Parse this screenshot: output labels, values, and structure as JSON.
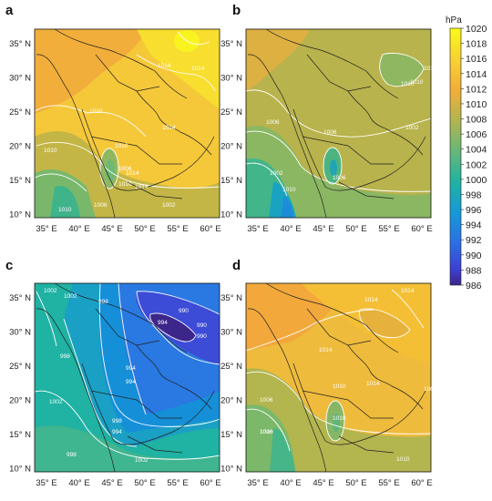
{
  "figure": {
    "panels": [
      {
        "letter": "a",
        "contour_labels": [
          "1014",
          "1014",
          "1010",
          "1014",
          "1010",
          "1010",
          "1006",
          "1014",
          "1010",
          "1014",
          "1002",
          "1006",
          "1010"
        ]
      },
      {
        "letter": "b",
        "contour_labels": [
          "1010",
          "1010",
          "1006",
          "1010",
          "1006",
          "1002",
          "1002",
          "1006",
          "1010"
        ]
      },
      {
        "letter": "c",
        "contour_labels": [
          "1002",
          "1002",
          "998",
          "994",
          "990",
          "990",
          "990",
          "994",
          "994",
          "998",
          "1002",
          "998",
          "994",
          "998",
          "1002"
        ]
      },
      {
        "letter": "d",
        "contour_labels": [
          "1014",
          "1014",
          "1014",
          "1010",
          "1014",
          "1010",
          "1006",
          "1006",
          "1010",
          "1010",
          "1006"
        ]
      }
    ],
    "x_ticks": [
      "35° E",
      "40° E",
      "45° E",
      "50° E",
      "55° E",
      "60° E"
    ],
    "y_ticks": [
      "35° N",
      "30° N",
      "25° N",
      "20° N",
      "15° N",
      "10° N"
    ],
    "colorbar": {
      "unit": "hPa",
      "levels": [
        "1020",
        "1018",
        "1016",
        "1014",
        "1012",
        "1010",
        "1008",
        "1006",
        "1004",
        "1002",
        "1000",
        "998",
        "996",
        "994",
        "992",
        "990",
        "988",
        "986"
      ]
    },
    "colors": {
      "c1020": "#f9fb17",
      "c1016": "#f8d233",
      "c1012": "#f2ae3a",
      "c1008": "#b2b550",
      "c1004": "#66b779",
      "c1000": "#20b2a2",
      "c996": "#1698d8",
      "c992": "#2c6ee4",
      "c988": "#3d3fcf",
      "c986": "#3d268a"
    }
  }
}
